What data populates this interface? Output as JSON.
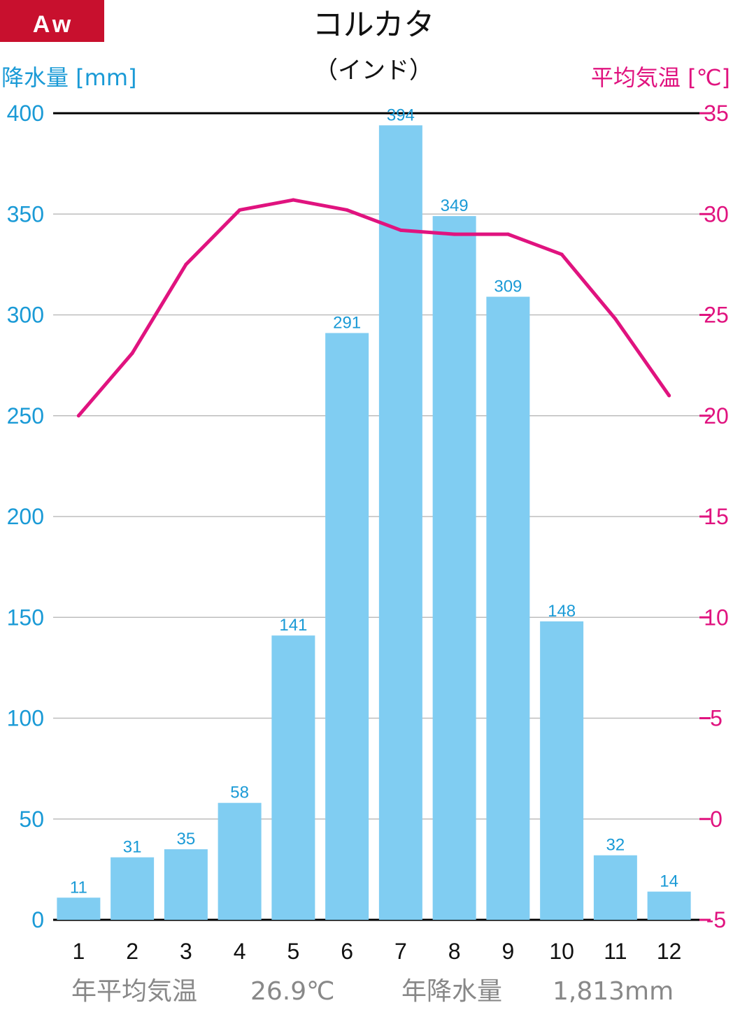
{
  "badge": "Aw",
  "title": "コルカタ",
  "subtitle": "（インド）",
  "left_axis_label": "降水量 [mm]",
  "right_axis_label": "平均気温 [℃]",
  "footer": {
    "temp_label": "年平均気温",
    "temp_value": "26.9℃",
    "precip_label": "年降水量",
    "precip_value": "1,813mm"
  },
  "colors": {
    "precip": "#1a9ad6",
    "bar": "#80cdf2",
    "temp": "#e0137f",
    "badge": "#c8102e"
  },
  "chart_data": {
    "type": "bar+line",
    "categories": [
      "1",
      "2",
      "3",
      "4",
      "5",
      "6",
      "7",
      "8",
      "9",
      "10",
      "11",
      "12"
    ],
    "series": [
      {
        "name": "降水量",
        "type": "bar",
        "axis": "left",
        "values": [
          11,
          31,
          35,
          58,
          141,
          291,
          394,
          349,
          309,
          148,
          32,
          14
        ]
      },
      {
        "name": "平均気温",
        "type": "line",
        "axis": "right",
        "values": [
          20.0,
          23.1,
          27.5,
          30.2,
          30.7,
          30.2,
          29.2,
          29.0,
          29.0,
          28.0,
          24.8,
          21.0
        ]
      }
    ],
    "ylim_left": [
      0,
      400
    ],
    "yticks_left": [
      "0",
      "50",
      "100",
      "150",
      "200",
      "250",
      "300",
      "350",
      "400"
    ],
    "ylim_right": [
      -5,
      35
    ],
    "yticks_right": [
      "-5",
      "0",
      "5",
      "10",
      "15",
      "20",
      "25",
      "30",
      "35"
    ],
    "grid": true
  }
}
